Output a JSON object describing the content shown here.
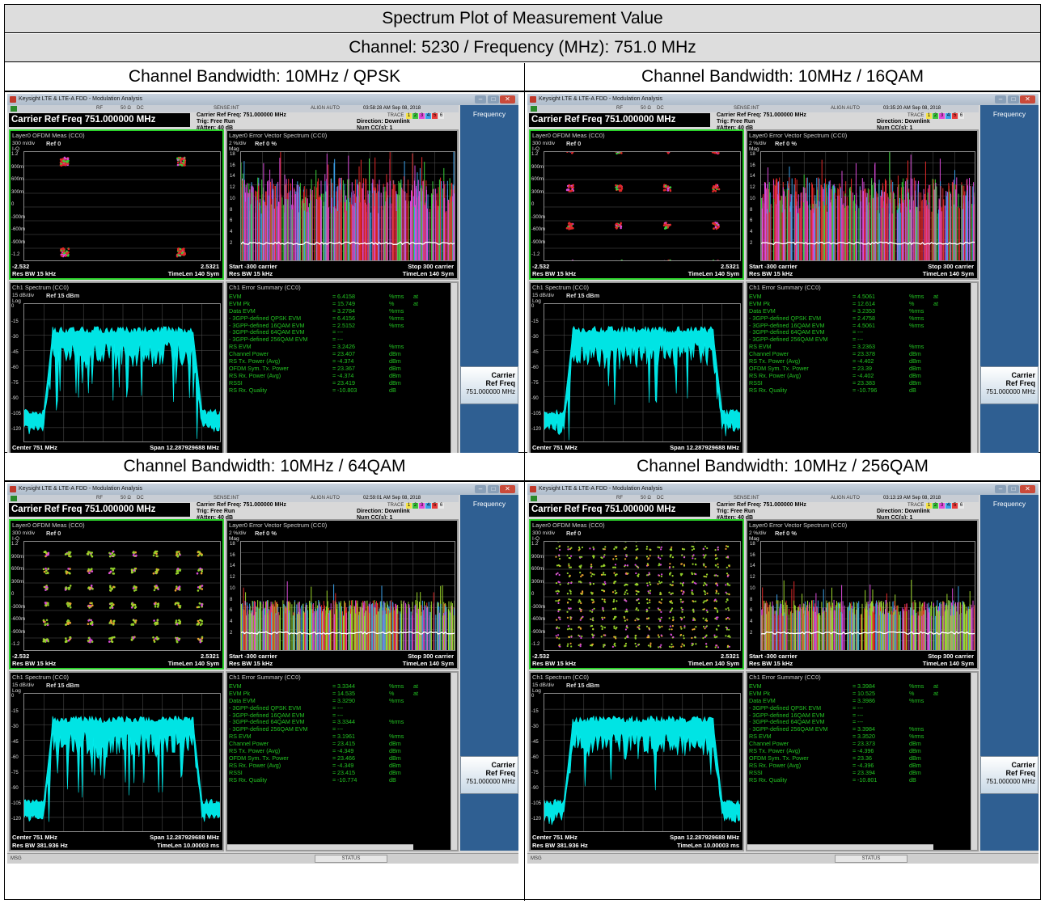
{
  "title": "Spectrum Plot of Measurement Value",
  "subtitle": "Channel: 5230 / Frequency (MHz): 751.0 MHz",
  "colors": {
    "side_panel": "#2f5f92",
    "cyan_trace": "#00f0f0",
    "green_text": "#22c322",
    "white_floor": "#ffffff"
  },
  "window": {
    "app_title": "Keysight LTE & LTE-A FDD - Modulation Analysis",
    "status_rf": "RF",
    "status_ohm": "50 Ω",
    "status_dc": "DC",
    "sense": "SENSE:INT",
    "align": "ALIGN AUTO",
    "carrier_ref": "Carrier Ref Freq 751.000000 MHz",
    "info_col1": [
      "Carrier Ref Freq: 751.000000 MHz",
      "Trig: Free Run",
      "#Atten: 40 dB"
    ],
    "info_col2": [
      "Direction: Downlink",
      "Num CC(s): 1"
    ],
    "trace_label": "TRACE",
    "trace_boxes": [
      "1",
      "2",
      "3",
      "4",
      "5",
      "6"
    ],
    "side_freq": "Frequency",
    "side_carrier_l1": "Carrier",
    "side_carrier_l2": "Ref Freq",
    "side_carrier_val": "751.000000 MHz",
    "msg": "MSG",
    "status": "STATUS"
  },
  "panels": {
    "iq_title": "Layer0 OFDM Meas (CC0)",
    "iq_div": "300 m/div",
    "iq_ref": "Ref 0",
    "iq_unit": "I-Q",
    "iq_ticks": [
      "1.2",
      "900m",
      "600m",
      "300m",
      "0",
      "-300m",
      "-600m",
      "-900m",
      "-1.2"
    ],
    "iq_left": "-2.532",
    "iq_right": "2.5321",
    "iq_rbw": "Res BW 15 kHz",
    "iq_timelen": "TimeLen 140  Sym",
    "evs_title": "Layer0 Error Vector Spectrum (CC0)",
    "evs_div": "2  %/div",
    "evs_ref": "Ref 0 %",
    "evs_unit": "Mag",
    "evs_ticks": [
      "18",
      "16",
      "14",
      "12",
      "10",
      "8",
      "6",
      "4",
      "2"
    ],
    "evs_start": "Start -300  carrier",
    "evs_stop": "Stop 300  carrier",
    "evs_rbw": "Res BW 15 kHz",
    "evs_timelen": "TimeLen 140  Sym",
    "spec_title": "Ch1 Spectrum (CC0)",
    "spec_div": "15 dB/div",
    "spec_ref": "Ref 15 dBm",
    "spec_unit": "Log",
    "spec_ticks": [
      "0",
      "-15",
      "-30",
      "-45",
      "-60",
      "-75",
      "-90",
      "-105",
      "-120"
    ],
    "spec_center": "Center 751 MHz",
    "spec_span": "Span 12.287929688 MHz",
    "spec_rbw": "Res BW 381.936  Hz",
    "spec_timelen": "TimeLen 10.00003 ms",
    "err_title": "Ch1 Error Summary (CC0)"
  },
  "cells": [
    {
      "header": "Channel Bandwidth: 10MHz / QPSK",
      "time": "03:58:28 AM Sep 08, 2018",
      "constellation": 2,
      "summary": [
        {
          "n": "EVM",
          "eq": "=",
          "v": "6.4158",
          "u": "%rms",
          "a": "at"
        },
        {
          "n": "EVM Pk",
          "eq": "=",
          "v": "15.749",
          "u": "%",
          "a": "at"
        },
        {
          "n": "Data EVM",
          "eq": "=",
          "v": "3.2784",
          "u": "%rms",
          "a": ""
        },
        {
          "n": " - 3GPP-defined QPSK EVM",
          "eq": "=",
          "v": "6.4156",
          "u": "%rms",
          "a": ""
        },
        {
          "n": " - 3GPP-defined 16QAM EVM",
          "eq": "=",
          "v": "2.5152",
          "u": "%rms",
          "a": ""
        },
        {
          "n": " - 3GPP-defined 64QAM EVM",
          "eq": "=",
          "v": "---",
          "u": "",
          "a": ""
        },
        {
          "n": " - 3GPP-defined 256QAM EVM",
          "eq": "=",
          "v": "---",
          "u": "",
          "a": ""
        },
        {
          "n": "RS EVM",
          "eq": "=",
          "v": "3.2426",
          "u": "%rms",
          "a": ""
        },
        {
          "n": "Channel Power",
          "eq": "=",
          "v": "23.407",
          "u": "dBm",
          "a": ""
        },
        {
          "n": "RS Tx. Power (Avg)",
          "eq": "=",
          "v": "-4.374",
          "u": "dBm",
          "a": ""
        },
        {
          "n": "OFDM Sym. Tx. Power",
          "eq": "=",
          "v": "23.367",
          "u": "dBm",
          "a": ""
        },
        {
          "n": "RS Rx. Power (Avg)",
          "eq": "=",
          "v": "-4.374",
          "u": "dBm",
          "a": ""
        },
        {
          "n": "RSSI",
          "eq": "=",
          "v": "23.419",
          "u": "dBm",
          "a": ""
        },
        {
          "n": "RS Rx. Quality",
          "eq": "=",
          "v": "-10.803",
          "u": "dB",
          "a": ""
        }
      ]
    },
    {
      "header": "Channel Bandwidth: 10MHz / 16QAM",
      "time": "03:35:20 AM Sep 08, 2018",
      "constellation": 4,
      "summary": [
        {
          "n": "EVM",
          "eq": "=",
          "v": "4.5061",
          "u": "%rms",
          "a": "at"
        },
        {
          "n": "EVM Pk",
          "eq": "=",
          "v": "12.614",
          "u": "%",
          "a": "at"
        },
        {
          "n": "Data EVM",
          "eq": "=",
          "v": "3.2353",
          "u": "%rms",
          "a": ""
        },
        {
          "n": " - 3GPP-defined QPSK EVM",
          "eq": "=",
          "v": "2.4758",
          "u": "%rms",
          "a": ""
        },
        {
          "n": " - 3GPP-defined 16QAM EVM",
          "eq": "=",
          "v": "4.5061",
          "u": "%rms",
          "a": ""
        },
        {
          "n": " - 3GPP-defined 64QAM EVM",
          "eq": "=",
          "v": "---",
          "u": "",
          "a": ""
        },
        {
          "n": " - 3GPP-defined 256QAM EVM",
          "eq": "=",
          "v": "---",
          "u": "",
          "a": ""
        },
        {
          "n": "RS EVM",
          "eq": "=",
          "v": "3.2363",
          "u": "%rms",
          "a": ""
        },
        {
          "n": "Channel Power",
          "eq": "=",
          "v": "23.378",
          "u": "dBm",
          "a": ""
        },
        {
          "n": "RS Tx. Power (Avg)",
          "eq": "=",
          "v": "-4.402",
          "u": "dBm",
          "a": ""
        },
        {
          "n": "OFDM Sym. Tx. Power",
          "eq": "=",
          "v": "23.39",
          "u": "dBm",
          "a": ""
        },
        {
          "n": "RS Rx. Power (Avg)",
          "eq": "=",
          "v": "-4.402",
          "u": "dBm",
          "a": ""
        },
        {
          "n": "RSSI",
          "eq": "=",
          "v": "23.383",
          "u": "dBm",
          "a": ""
        },
        {
          "n": "RS Rx. Quality",
          "eq": "=",
          "v": "-10.796",
          "u": "dB",
          "a": ""
        }
      ]
    },
    {
      "header": "Channel Bandwidth: 10MHz / 64QAM",
      "time": "02:59:01 AM Sep 08, 2018",
      "constellation": 8,
      "summary": [
        {
          "n": "EVM",
          "eq": "=",
          "v": "3.3344",
          "u": "%rms",
          "a": "at"
        },
        {
          "n": "EVM Pk",
          "eq": "=",
          "v": "14.535",
          "u": "%",
          "a": "at"
        },
        {
          "n": "Data EVM",
          "eq": "=",
          "v": "3.3290",
          "u": "%rms",
          "a": ""
        },
        {
          "n": " - 3GPP-defined QPSK EVM",
          "eq": "=",
          "v": "---",
          "u": "",
          "a": ""
        },
        {
          "n": " - 3GPP-defined 16QAM EVM",
          "eq": "=",
          "v": "---",
          "u": "",
          "a": ""
        },
        {
          "n": " - 3GPP-defined 64QAM EVM",
          "eq": "=",
          "v": "3.3344",
          "u": "%rms",
          "a": ""
        },
        {
          "n": " - 3GPP-defined 256QAM EVM",
          "eq": "=",
          "v": "---",
          "u": "",
          "a": ""
        },
        {
          "n": "RS EVM",
          "eq": "=",
          "v": "3.1961",
          "u": "%rms",
          "a": ""
        },
        {
          "n": "Channel Power",
          "eq": "=",
          "v": "23.415",
          "u": "dBm",
          "a": ""
        },
        {
          "n": "RS Tx. Power (Avg)",
          "eq": "=",
          "v": "-4.349",
          "u": "dBm",
          "a": ""
        },
        {
          "n": "OFDM Sym. Tx. Power",
          "eq": "=",
          "v": "23.466",
          "u": "dBm",
          "a": ""
        },
        {
          "n": "RS Rx. Power (Avg)",
          "eq": "=",
          "v": "-4.349",
          "u": "dBm",
          "a": ""
        },
        {
          "n": "RSSI",
          "eq": "=",
          "v": "23.415",
          "u": "dBm",
          "a": ""
        },
        {
          "n": "RS Rx. Quality",
          "eq": "=",
          "v": "-10.774",
          "u": "dB",
          "a": ""
        }
      ]
    },
    {
      "header": "Channel Bandwidth: 10MHz / 256QAM",
      "time": "03:13:19 AM Sep 08, 2018",
      "constellation": 16,
      "summary": [
        {
          "n": "EVM",
          "eq": "=",
          "v": "3.3984",
          "u": "%rms",
          "a": "at"
        },
        {
          "n": "EVM Pk",
          "eq": "=",
          "v": "10.525",
          "u": "%",
          "a": "at"
        },
        {
          "n": "Data EVM",
          "eq": "=",
          "v": "3.3986",
          "u": "%rms",
          "a": ""
        },
        {
          "n": " - 3GPP-defined QPSK EVM",
          "eq": "=",
          "v": "---",
          "u": "",
          "a": ""
        },
        {
          "n": " - 3GPP-defined 16QAM EVM",
          "eq": "=",
          "v": "---",
          "u": "",
          "a": ""
        },
        {
          "n": " - 3GPP-defined 64QAM EVM",
          "eq": "=",
          "v": "---",
          "u": "",
          "a": ""
        },
        {
          "n": " - 3GPP-defined 256QAM EVM",
          "eq": "=",
          "v": "3.3984",
          "u": "%rms",
          "a": ""
        },
        {
          "n": "RS EVM",
          "eq": "=",
          "v": "3.3520",
          "u": "%rms",
          "a": ""
        },
        {
          "n": "Channel Power",
          "eq": "=",
          "v": "23.373",
          "u": "dBm",
          "a": ""
        },
        {
          "n": "RS Tx. Power (Avg)",
          "eq": "=",
          "v": "-4.396",
          "u": "dBm",
          "a": ""
        },
        {
          "n": "OFDM Sym. Tx. Power",
          "eq": "=",
          "v": "23.36",
          "u": "dBm",
          "a": ""
        },
        {
          "n": "RS Rx. Power (Avg)",
          "eq": "=",
          "v": "-4.396",
          "u": "dBm",
          "a": ""
        },
        {
          "n": "RSSI",
          "eq": "=",
          "v": "23.394",
          "u": "dBm",
          "a": ""
        },
        {
          "n": "RS Rx. Quality",
          "eq": "=",
          "v": "-10.801",
          "u": "dB",
          "a": ""
        }
      ]
    }
  ]
}
